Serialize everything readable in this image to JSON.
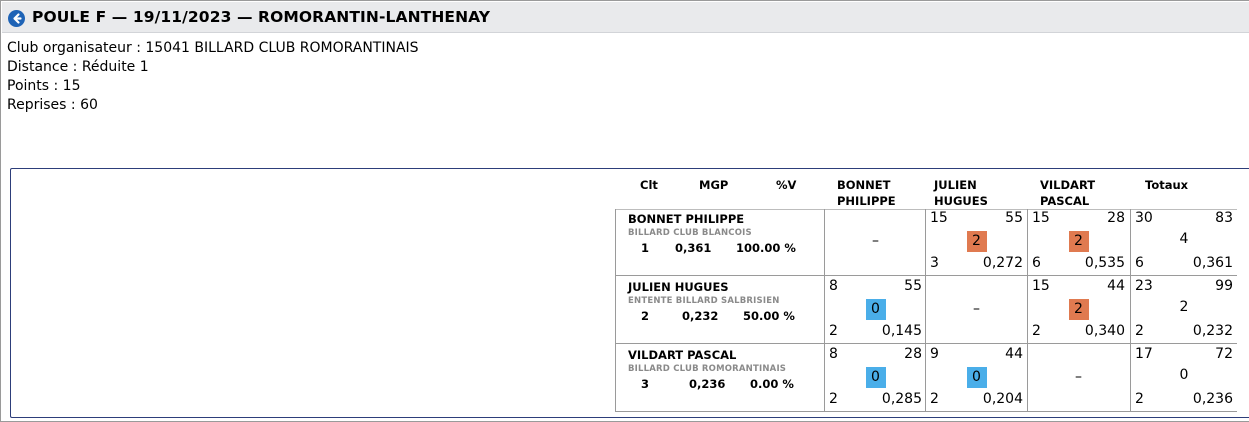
{
  "header": {
    "title": "POULE F — 19/11/2023 — ROMORANTIN-LANTHENAY",
    "back_icon": "arrow-left-circle-icon"
  },
  "info": [
    "Club organisateur : 15041 BILLARD CLUB ROMORANTINAIS",
    "Distance : Réduite 1",
    "Points : 15",
    "Reprises : 60"
  ],
  "table": {
    "headers": {
      "clt": "Clt",
      "mgp": "MGP",
      "pv": "%V",
      "col1_line1": "BONNET",
      "col1_line2": "PHILIPPE",
      "col2_line1": "JULIEN",
      "col2_line2": "HUGUES",
      "col3_line1": "VILDART",
      "col3_line2": "PASCAL",
      "totaux": "Totaux"
    },
    "players": [
      {
        "name": "BONNET PHILIPPE",
        "club": "BILLARD CLUB BLANCOIS",
        "clt": "1",
        "mgp": "0,361",
        "pv": "100.00 %",
        "cells": [
          {
            "dash": "–"
          },
          {
            "points": "15",
            "reprises": "55",
            "match_points": "2",
            "serie": "3",
            "moyenne": "0,272"
          },
          {
            "points": "15",
            "reprises": "28",
            "match_points": "2",
            "serie": "6",
            "moyenne": "0,535"
          }
        ],
        "total": {
          "points": "30",
          "reprises": "83",
          "match_points": "4",
          "serie": "6",
          "moyenne": "0,361"
        }
      },
      {
        "name": "JULIEN HUGUES",
        "club": "ENTENTE BILLARD SALBRISIEN",
        "clt": "2",
        "mgp": "0,232",
        "pv": "50.00 %",
        "cells": [
          {
            "points": "8",
            "reprises": "55",
            "match_points": "0",
            "serie": "2",
            "moyenne": "0,145"
          },
          {
            "dash": "–"
          },
          {
            "points": "15",
            "reprises": "44",
            "match_points": "2",
            "serie": "2",
            "moyenne": "0,340"
          }
        ],
        "total": {
          "points": "23",
          "reprises": "99",
          "match_points": "2",
          "serie": "2",
          "moyenne": "0,232"
        }
      },
      {
        "name": "VILDART PASCAL",
        "club": "BILLARD CLUB ROMORANTINAIS",
        "clt": "3",
        "mgp": "0,236",
        "pv": "0.00 %",
        "cells": [
          {
            "points": "8",
            "reprises": "28",
            "match_points": "0",
            "serie": "2",
            "moyenne": "0,285"
          },
          {
            "points": "9",
            "reprises": "44",
            "match_points": "0",
            "serie": "2",
            "moyenne": "0,204"
          },
          {
            "dash": "–"
          }
        ],
        "total": {
          "points": "17",
          "reprises": "72",
          "match_points": "0",
          "serie": "2",
          "moyenne": "0,236"
        }
      }
    ]
  },
  "colors": {
    "win_badge": "#e07a50",
    "loss_badge": "#4aaee9",
    "title_bar": "#e9eaec",
    "panel_border": "#2d3e7a"
  }
}
